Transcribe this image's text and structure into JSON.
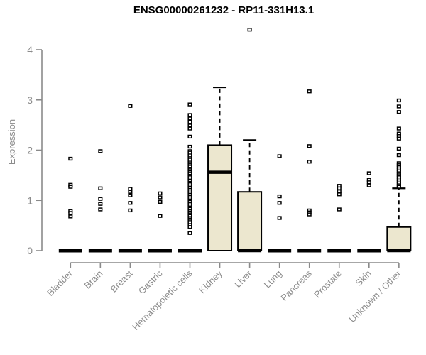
{
  "chart_data": {
    "type": "boxplot",
    "title": "ENSG00000261232 - RP11-331H13.1",
    "ylabel": "Expression",
    "xlabel": "",
    "ylim": [
      0,
      4
    ],
    "yticks": [
      0,
      1,
      2,
      3,
      4
    ],
    "grid": false,
    "legend": "none",
    "categories": [
      "Bladder",
      "Brain",
      "Breast",
      "Gastric",
      "Hematopoietic cells",
      "Kidney",
      "Liver",
      "Lung",
      "Pancreas",
      "Prostate",
      "Skin",
      "Unknown / Other"
    ],
    "boxes": [
      {
        "category": "Bladder",
        "q1": 0,
        "median": 0,
        "q3": 0,
        "whisker_low": 0,
        "whisker_high": 0,
        "outliers": [
          1.83,
          1.31,
          1.27,
          0.79,
          0.75,
          0.68
        ]
      },
      {
        "category": "Brain",
        "q1": 0,
        "median": 0,
        "q3": 0,
        "whisker_low": 0,
        "whisker_high": 0,
        "outliers": [
          1.98,
          1.24,
          1.03,
          0.93,
          0.82
        ]
      },
      {
        "category": "Breast",
        "q1": 0,
        "median": 0,
        "q3": 0,
        "whisker_low": 0,
        "whisker_high": 0,
        "outliers": [
          2.88,
          1.23,
          1.17,
          1.1,
          0.95,
          0.8
        ]
      },
      {
        "category": "Gastric",
        "q1": 0,
        "median": 0,
        "q3": 0,
        "whisker_low": 0,
        "whisker_high": 0,
        "outliers": [
          1.14,
          1.06,
          0.97,
          0.69
        ]
      },
      {
        "category": "Hematopoietic cells",
        "q1": 0,
        "median": 0,
        "q3": 0,
        "whisker_low": 0,
        "whisker_high": 0,
        "outliers": [
          2.91,
          2.7,
          2.63,
          2.56,
          2.49,
          2.43,
          2.27,
          2.07,
          1.98,
          1.95,
          1.91,
          1.88,
          1.84,
          1.81,
          1.77,
          1.74,
          1.7,
          1.67,
          1.63,
          1.6,
          1.56,
          1.53,
          1.49,
          1.46,
          1.42,
          1.39,
          1.35,
          1.32,
          1.28,
          1.25,
          1.21,
          1.18,
          1.14,
          1.11,
          1.07,
          1.04,
          1.0,
          0.97,
          0.93,
          0.9,
          0.86,
          0.83,
          0.79,
          0.76,
          0.72,
          0.69,
          0.65,
          0.62,
          0.58,
          0.55,
          0.51,
          0.47,
          0.35
        ]
      },
      {
        "category": "Kidney",
        "q1": 0,
        "median": 1.56,
        "q3": 2.1,
        "whisker_low": 0,
        "whisker_high": 3.25,
        "outliers": []
      },
      {
        "category": "Liver",
        "q1": 0,
        "median": 0,
        "q3": 1.17,
        "whisker_low": 0,
        "whisker_high": 2.2,
        "outliers": [
          4.4
        ]
      },
      {
        "category": "Lung",
        "q1": 0,
        "median": 0,
        "q3": 0,
        "whisker_low": 0,
        "whisker_high": 0,
        "outliers": [
          1.88,
          1.08,
          0.95,
          0.65
        ]
      },
      {
        "category": "Pancreas",
        "q1": 0,
        "median": 0,
        "q3": 0,
        "whisker_low": 0,
        "whisker_high": 0,
        "outliers": [
          3.17,
          2.08,
          1.77,
          0.8,
          0.76,
          0.72
        ]
      },
      {
        "category": "Prostate",
        "q1": 0,
        "median": 0,
        "q3": 0,
        "whisker_low": 0,
        "whisker_high": 0,
        "outliers": [
          1.29,
          1.24,
          1.18,
          1.12,
          0.82
        ]
      },
      {
        "category": "Skin",
        "q1": 0,
        "median": 0,
        "q3": 0,
        "whisker_low": 0,
        "whisker_high": 0,
        "outliers": [
          1.54,
          1.41,
          1.36,
          1.3
        ]
      },
      {
        "category": "Unknown / Other",
        "q1": 0,
        "median": 0,
        "q3": 0.47,
        "whisker_low": 0,
        "whisker_high": 1.24,
        "outliers": [
          2.99,
          2.87,
          2.76,
          2.43,
          2.33,
          2.28,
          2.23,
          2.03,
          1.9,
          1.74,
          1.7,
          1.66,
          1.62,
          1.58,
          1.54,
          1.5,
          1.46,
          1.42,
          1.38,
          1.34,
          1.3,
          1.27
        ]
      }
    ],
    "colors": {
      "box_fill": "#ECE7CF",
      "box_stroke": "#000000",
      "median": "#000000",
      "outlier_stroke": "#000000",
      "outlier_fill": "#FFFFFF",
      "axis": "#8A8A8A",
      "tick_text": "#8C8C8C",
      "title_text": "#000000",
      "background": "#FFFFFF"
    }
  }
}
